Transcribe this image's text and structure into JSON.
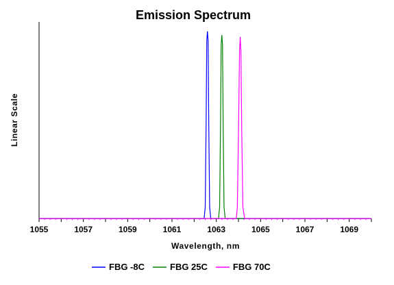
{
  "chart_data": {
    "type": "line",
    "title": "Emission Spectrum",
    "xlabel": "Wavelength, nm",
    "ylabel": "Linear Scale",
    "xlim": [
      1055,
      1070
    ],
    "ylim": [
      0,
      1.05
    ],
    "x_ticks": [
      "1055",
      "1057",
      "1059",
      "1061",
      "1063",
      "1065",
      "1067",
      "1069"
    ],
    "grid": false,
    "legend": "bottom",
    "series": [
      {
        "name": "FBG -8C",
        "color": "#0000ff",
        "x": [
          1055,
          1062.45,
          1062.5,
          1062.54,
          1062.57,
          1062.6,
          1062.63,
          1062.66,
          1062.7,
          1062.75,
          1070
        ],
        "y": [
          0,
          0,
          0.06,
          0.5,
          0.95,
          1.0,
          0.95,
          0.5,
          0.06,
          0,
          0
        ]
      },
      {
        "name": "FBG 25C",
        "color": "#008000",
        "x": [
          1055,
          1063.1,
          1063.15,
          1063.19,
          1063.22,
          1063.25,
          1063.28,
          1063.31,
          1063.35,
          1063.4,
          1070
        ],
        "y": [
          0,
          0,
          0.06,
          0.5,
          0.93,
          0.98,
          0.93,
          0.5,
          0.06,
          0,
          0
        ]
      },
      {
        "name": "FBG 70C",
        "color": "#ff00ff",
        "x": [
          1055,
          1063.9,
          1063.95,
          1064.0,
          1064.05,
          1064.08,
          1064.11,
          1064.15,
          1064.2,
          1064.28,
          1070
        ],
        "y": [
          0,
          0,
          0.06,
          0.45,
          0.9,
          0.97,
          0.9,
          0.45,
          0.06,
          0,
          0
        ]
      }
    ]
  }
}
